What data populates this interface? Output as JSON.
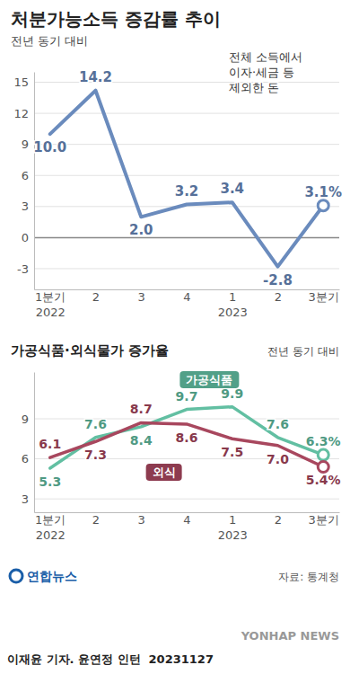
{
  "chart_data": [
    {
      "type": "line",
      "title": "처분가능소득 증감률 추이",
      "subtitle": "전년 동기 대비",
      "annotation": "전체 소득에서 이자·세금 등 제외한 돈",
      "categories": [
        "1분기\n2022",
        "2",
        "3",
        "4",
        "1\n2023",
        "2",
        "3분기"
      ],
      "values": [
        10.0,
        14.2,
        2.0,
        3.2,
        3.4,
        -2.8,
        3.1
      ],
      "value_labels": [
        "10.0",
        "14.2",
        "2.0",
        "3.2",
        "3.4",
        "-2.8",
        "3.1%"
      ],
      "color": "#6a8bbd",
      "ylim": [
        -5,
        16
      ],
      "yticks": [
        -3,
        0,
        3,
        6,
        9,
        12,
        15
      ],
      "grid": true,
      "data_labels": true,
      "marker": "end"
    },
    {
      "type": "line",
      "title": "가공식품·외식물가 증가율",
      "subtitle": "전년 동기 대비",
      "categories": [
        "1분기\n2022",
        "2",
        "3",
        "4",
        "1\n2023",
        "2",
        "3분기"
      ],
      "series": [
        {
          "name": "가공식품",
          "color": "#62bfa2",
          "values": [
            5.3,
            7.6,
            8.4,
            9.7,
            9.9,
            7.6,
            6.3
          ],
          "value_labels": [
            "5.3",
            "7.6",
            "8.4",
            "9.7",
            "9.9",
            "7.6",
            "6.3%"
          ]
        },
        {
          "name": "외식",
          "color": "#a8475e",
          "values": [
            6.1,
            7.3,
            8.7,
            8.6,
            7.5,
            7.0,
            5.4
          ],
          "value_labels": [
            "6.1",
            "7.3",
            "8.7",
            "8.6",
            "7.5",
            "7.0",
            "5.4%"
          ]
        }
      ],
      "ylim": [
        2,
        12.5
      ],
      "yticks": [
        3,
        6,
        9
      ],
      "grid": true,
      "data_labels": true,
      "marker": "end"
    }
  ],
  "footer": {
    "logo": "연합뉴스",
    "source": "자료: 통계청",
    "credit": "이재윤 기자. 윤연정 인턴  20231127",
    "watermark": "YONHAP NEWS"
  }
}
